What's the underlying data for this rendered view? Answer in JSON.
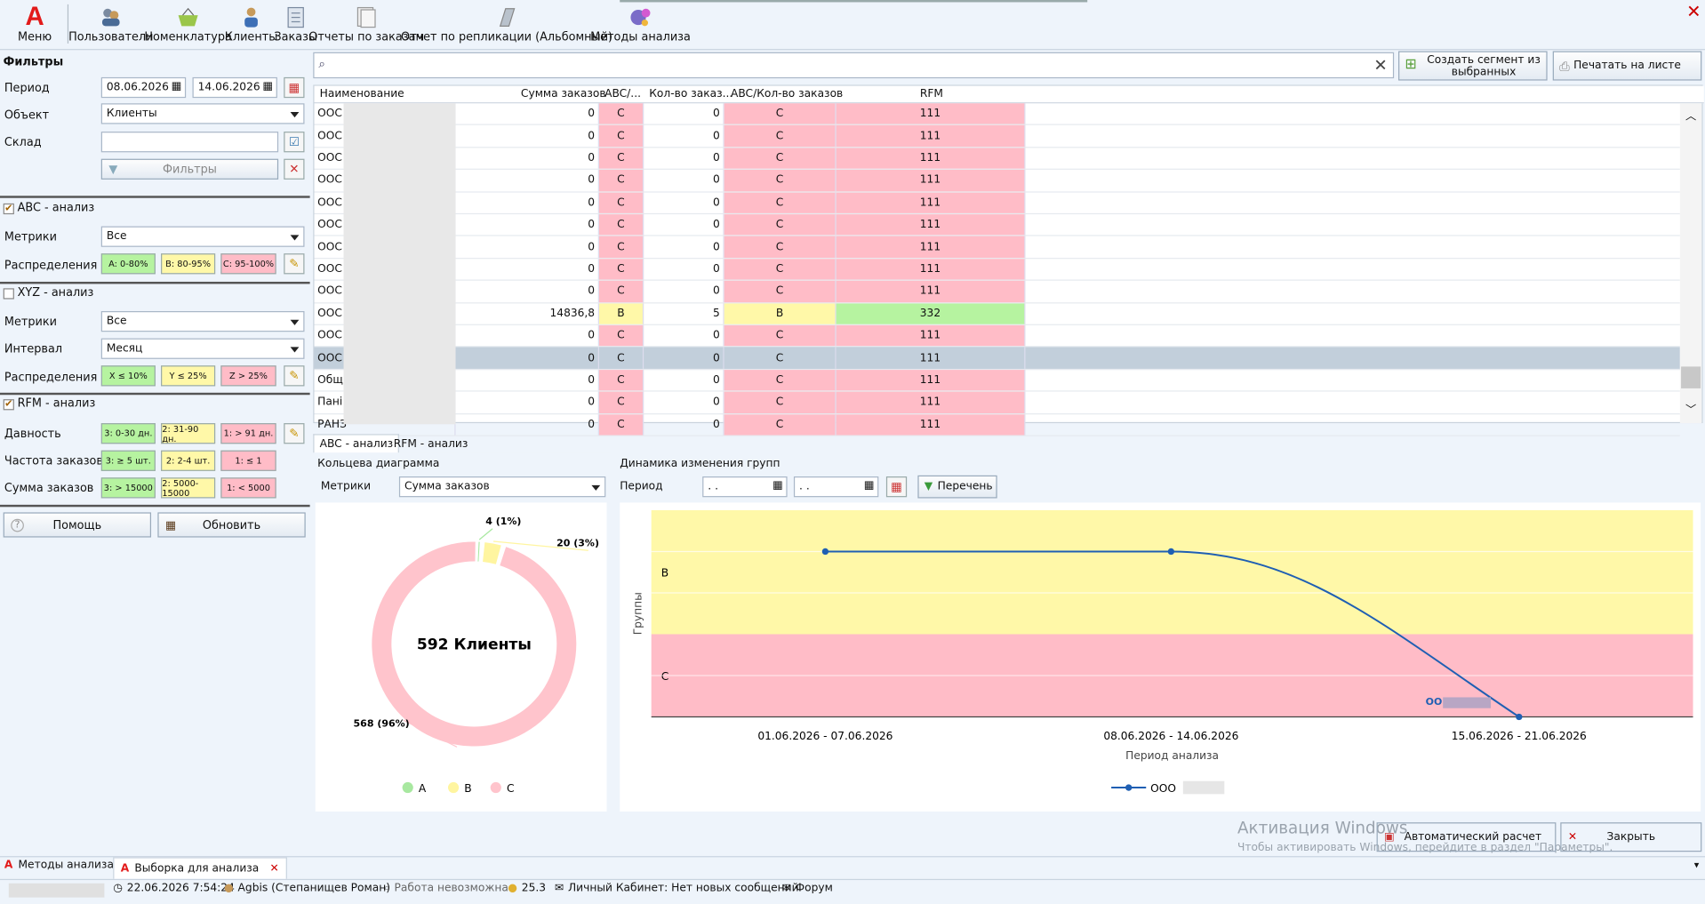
{
  "toolbar": {
    "menu_label": "Меню",
    "items": [
      "Пользователи",
      "Номенклатура",
      "Клиенты",
      "Заказы",
      "Отчеты по заказам",
      "Отчет по репликации (Альбомный)",
      "Методы анализа"
    ]
  },
  "filters": {
    "title": "Фильтры",
    "period_label": "Период",
    "date_from": "08.06.2026",
    "date_to": "14.06.2026",
    "object_label": "Объект",
    "object_value": "Клиенты",
    "warehouse_label": "Склад",
    "warehouse_value": "",
    "filters_button": "Фильтры"
  },
  "abc": {
    "title": "ABC - анализ",
    "checked": true,
    "metrics_label": "Метрики",
    "metrics_value": "Все",
    "dist_label": "Распределения",
    "chips": [
      "A: 0-80%",
      "B: 80-95%",
      "C: 95-100%"
    ]
  },
  "xyz": {
    "title": "XYZ - анализ",
    "checked": false,
    "metrics_label": "Метрики",
    "metrics_value": "Все",
    "interval_label": "Интервал",
    "interval_value": "Месяц",
    "dist_label": "Распределения",
    "chips": [
      "X ≤ 10%",
      "Y ≤ 25%",
      "Z > 25%"
    ]
  },
  "rfm": {
    "title": "RFM - анализ",
    "checked": true,
    "recency_label": "Давность",
    "recency_chips": [
      "3: 0-30 дн.",
      "2: 31-90 дн.",
      "1: > 91 дн."
    ],
    "frequency_label": "Частота заказов",
    "frequency_chips": [
      "3: ≥ 5 шт.",
      "2: 2-4 шт.",
      "1: ≤ 1"
    ],
    "sum_label": "Сумма заказов",
    "sum_chips": [
      "3: > 15000",
      "2: 5000-15000",
      "1: < 5000"
    ]
  },
  "bottom_left": {
    "help": "Помощь",
    "refresh": "Обновить"
  },
  "search": {
    "placeholder": "",
    "segment_button": "Создать сегмент из выбранных",
    "print_button": "Печатать на листе"
  },
  "colors": {
    "green": "#b6f3a0",
    "yellow": "#fff8a8",
    "red": "#ffbcc7",
    "selected": "#c2cfdb",
    "line": "#1f5fb3"
  },
  "table": {
    "columns": [
      "Наименование",
      "Сумма заказов",
      "ABC/...",
      "Кол-во заказ...",
      "ABC/Кол-во заказов",
      "RFM"
    ],
    "rows": [
      {
        "name": "ООС",
        "sum": "0",
        "abc": "C",
        "cnt": "0",
        "abc2": "C",
        "rfm": "111",
        "cls": "r"
      },
      {
        "name": "ООС",
        "sum": "0",
        "abc": "C",
        "cnt": "0",
        "abc2": "C",
        "rfm": "111",
        "cls": "r"
      },
      {
        "name": "ООС",
        "sum": "0",
        "abc": "C",
        "cnt": "0",
        "abc2": "C",
        "rfm": "111",
        "cls": "r"
      },
      {
        "name": "ООС",
        "sum": "0",
        "abc": "C",
        "cnt": "0",
        "abc2": "C",
        "rfm": "111",
        "cls": "r"
      },
      {
        "name": "ООС",
        "sum": "0",
        "abc": "C",
        "cnt": "0",
        "abc2": "C",
        "rfm": "111",
        "cls": "r"
      },
      {
        "name": "ООС",
        "sum": "0",
        "abc": "C",
        "cnt": "0",
        "abc2": "C",
        "rfm": "111",
        "cls": "r"
      },
      {
        "name": "ООС",
        "sum": "0",
        "abc": "C",
        "cnt": "0",
        "abc2": "C",
        "rfm": "111",
        "cls": "r"
      },
      {
        "name": "ООС",
        "sum": "0",
        "abc": "C",
        "cnt": "0",
        "abc2": "C",
        "rfm": "111",
        "cls": "r"
      },
      {
        "name": "ООС",
        "sum": "0",
        "abc": "C",
        "cnt": "0",
        "abc2": "C",
        "rfm": "111",
        "cls": "r"
      },
      {
        "name": "ООС",
        "sum": "14836,8",
        "abc": "B",
        "cnt": "5",
        "abc2": "B",
        "rfm": "332",
        "cls": "b"
      },
      {
        "name": "ООС",
        "sum": "0",
        "abc": "C",
        "cnt": "0",
        "abc2": "C",
        "rfm": "111",
        "cls": "r"
      },
      {
        "name": "ООС",
        "sum": "0",
        "abc": "C",
        "cnt": "0",
        "abc2": "C",
        "rfm": "111",
        "cls": "sel"
      },
      {
        "name": "Общ",
        "sum": "0",
        "abc": "C",
        "cnt": "0",
        "abc2": "C",
        "rfm": "111",
        "cls": "r"
      },
      {
        "name": "Пані",
        "sum": "0",
        "abc": "C",
        "cnt": "0",
        "abc2": "C",
        "rfm": "111",
        "cls": "r"
      },
      {
        "name": "РАНЗ",
        "sum": "0",
        "abc": "C",
        "cnt": "0",
        "abc2": "C",
        "rfm": "111",
        "cls": "r"
      }
    ]
  },
  "tabs": [
    "ABC - анализ",
    "RFM - анализ"
  ],
  "donut_panel": {
    "title": "Кольцева диаграмма",
    "metrics_label": "Метрики",
    "metrics_value": "Сумма заказов"
  },
  "line_panel": {
    "title": "Динамика изменения групп",
    "period_label": "Период",
    "date_from": ". .",
    "date_to": ". .",
    "list_button": "Перечень"
  },
  "chart_data": [
    {
      "type": "pie",
      "center_text": "592 Клиенты",
      "categories": [
        "A",
        "B",
        "C"
      ],
      "values": [
        4,
        20,
        568
      ],
      "labels": [
        "4 (1%)",
        "20 (3%)",
        "568 (96%)"
      ],
      "colors": [
        "#a8e8a0",
        "#fff5a0",
        "#ffc4cc"
      ],
      "legend": [
        "A",
        "B",
        "C"
      ]
    },
    {
      "type": "line",
      "x": [
        "01.06.2026 - 07.06.2026",
        "08.06.2026 - 14.06.2026",
        "15.06.2026 - 21.06.2026"
      ],
      "bands": [
        "B",
        "C"
      ],
      "series": [
        {
          "name": "ООО",
          "values": [
            "B",
            "B",
            "C"
          ]
        }
      ],
      "ylabel": "Группы",
      "xlabel": "Период анализа",
      "point_label": "ОО"
    }
  ],
  "footer": {
    "auto_calc": "Автоматический расчет",
    "close": "Закрыть",
    "watermark_1": "Активация Windows",
    "watermark_2": "Чтобы активировать Windows, перейдите в раздел \"Параметры\"."
  },
  "bottom_tabs": [
    "Методы анализа",
    "Выборка для анализа"
  ],
  "statusbar": {
    "datetime": "22.06.2026 7:54:24",
    "user": "Agbis (Степанищев Роман)",
    "work": "Работа невозможна",
    "version": "25.3",
    "cabinet": "Личный Кабинет: Нет новых сообщений",
    "forum": "Форум"
  }
}
